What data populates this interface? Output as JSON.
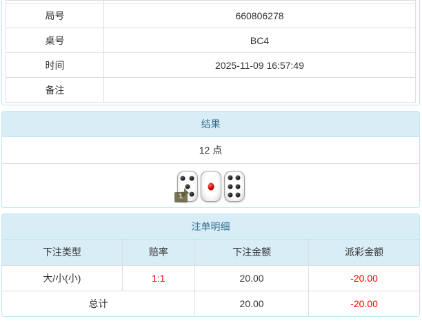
{
  "info_table": {
    "rows": [
      {
        "label": "局号",
        "value": "660806278"
      },
      {
        "label": "桌号",
        "value": "BC4"
      },
      {
        "label": "时间",
        "value": "2025-11-09 16:57:49"
      },
      {
        "label": "备注",
        "value": ""
      }
    ]
  },
  "result_panel": {
    "title": "结果",
    "points": "12 点",
    "dice": [
      {
        "value": 5,
        "color": "black"
      },
      {
        "value": 1,
        "color": "red"
      },
      {
        "value": 6,
        "color": "black"
      }
    ],
    "info_icon_glyph": "i"
  },
  "bets_panel": {
    "title": "注单明细",
    "columns": [
      "下注类型",
      "赔率",
      "下注金额",
      "派彩金额"
    ],
    "rows": [
      {
        "bet_type": "大/小(小)",
        "odds": "1:1",
        "bet_amount": "20.00",
        "payout": "-20.00"
      }
    ],
    "total": {
      "label": "总计",
      "bet_amount": "20.00",
      "payout": "-20.00"
    }
  },
  "colors": {
    "panel_border": "#bce8f1",
    "heading_bg": "#d9edf7",
    "heading_text": "#31708f",
    "table_border": "#dddddd",
    "text": "#333333",
    "negative_amount": "#ff0000"
  }
}
